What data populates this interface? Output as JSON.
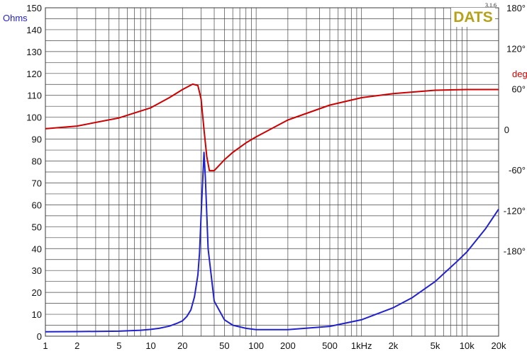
{
  "logo": {
    "text": "DATS",
    "version": "3.1.6"
  },
  "chart_data": {
    "type": "line",
    "title": "",
    "xscale": "log",
    "xlim": [
      1,
      20000
    ],
    "xticks": [
      {
        "v": 1,
        "label": "1"
      },
      {
        "v": 2,
        "label": "2"
      },
      {
        "v": 5,
        "label": "5"
      },
      {
        "v": 10,
        "label": "10"
      },
      {
        "v": 20,
        "label": "20"
      },
      {
        "v": 50,
        "label": "50"
      },
      {
        "v": 100,
        "label": "100"
      },
      {
        "v": 200,
        "label": "200"
      },
      {
        "v": 500,
        "label": "500"
      },
      {
        "v": 1000,
        "label": "1kHz"
      },
      {
        "v": 2000,
        "label": "2k"
      },
      {
        "v": 5000,
        "label": "5k"
      },
      {
        "v": 10000,
        "label": "10k"
      },
      {
        "v": 20000,
        "label": "20k"
      }
    ],
    "y_left": {
      "label": "Ohms",
      "lim": [
        0,
        150
      ],
      "ticks": [
        0,
        10,
        20,
        30,
        40,
        50,
        60,
        70,
        80,
        90,
        100,
        110,
        120,
        130,
        140,
        150
      ],
      "color": "#2222cc"
    },
    "y_right": {
      "label": "deg",
      "lim": [
        -306,
        180
      ],
      "ticks": [
        {
          "v": 180,
          "label": "180°"
        },
        {
          "v": 120,
          "label": "120°"
        },
        {
          "v": 60,
          "label": "60°"
        },
        {
          "v": 0,
          "label": "0"
        },
        {
          "v": -60,
          "label": "-60°"
        },
        {
          "v": -120,
          "label": "-120°"
        },
        {
          "v": -180,
          "label": "-180°"
        }
      ],
      "color": "#cc0000"
    },
    "grid": true,
    "series": [
      {
        "axis": "left",
        "color": "#2222cc",
        "x": [
          1,
          2,
          5,
          8,
          10,
          12,
          15,
          18,
          20,
          22,
          24,
          26,
          28,
          29,
          30,
          31,
          32,
          33,
          35,
          40,
          50,
          60,
          80,
          100,
          200,
          500,
          1000,
          2000,
          3000,
          5000,
          8000,
          10000,
          15000,
          20000
        ],
        "y": [
          2.0,
          2.1,
          2.3,
          2.7,
          3.1,
          3.6,
          4.6,
          6.0,
          7.0,
          9.0,
          12.0,
          18.0,
          28.0,
          38.0,
          55.0,
          70.0,
          84.0,
          72.0,
          40.0,
          16.0,
          7.5,
          5.0,
          3.6,
          3.0,
          3.0,
          4.5,
          7.5,
          13.0,
          17.5,
          25.0,
          34.0,
          38.5,
          49.0,
          58.0
        ]
      },
      {
        "axis": "right",
        "color": "#cc0000",
        "x": [
          1,
          2,
          5,
          10,
          15,
          20,
          25,
          28,
          30,
          32,
          34,
          36,
          40,
          50,
          60,
          80,
          100,
          200,
          500,
          1000,
          2000,
          5000,
          10000,
          20000
        ],
        "y": [
          1,
          5,
          17,
          32,
          47,
          59,
          67,
          65,
          45,
          0,
          -40,
          -61,
          -61,
          -45,
          -34,
          -20,
          -11,
          14,
          36,
          47,
          53,
          58,
          59,
          59
        ]
      }
    ]
  }
}
